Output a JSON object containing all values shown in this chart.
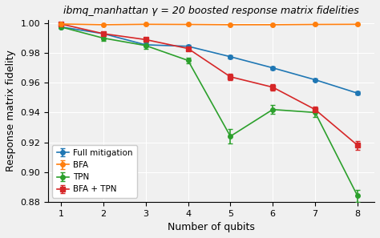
{
  "title": "ibmq_manhattan γ = 20 boosted response matrix fidelities",
  "xlabel": "Number of qubits",
  "ylabel": "Response matrix fidelity",
  "x": [
    1,
    2,
    3,
    4,
    5,
    6,
    7,
    8
  ],
  "full_mitigation": [
    0.9975,
    0.993,
    0.9855,
    0.9845,
    0.9775,
    0.97,
    0.962,
    0.953
  ],
  "full_mitigation_err": [
    0.001,
    0.001,
    0.001,
    0.001,
    0.001,
    0.001,
    0.001,
    0.001
  ],
  "bfa": [
    0.9995,
    0.999,
    0.9993,
    0.9992,
    0.999,
    0.999,
    0.9992,
    0.9993
  ],
  "bfa_err": [
    0.0002,
    0.0002,
    0.0002,
    0.0002,
    0.0002,
    0.0002,
    0.0002,
    0.0002
  ],
  "tpn": [
    0.9975,
    0.99,
    0.985,
    0.975,
    0.924,
    0.942,
    0.94,
    0.884
  ],
  "tpn_err": [
    0.001,
    0.002,
    0.002,
    0.002,
    0.005,
    0.003,
    0.003,
    0.004
  ],
  "bfa_tpn": [
    0.9995,
    0.993,
    0.989,
    0.983,
    0.964,
    0.957,
    0.942,
    0.918
  ],
  "bfa_tpn_err": [
    0.001,
    0.001,
    0.001,
    0.001,
    0.002,
    0.002,
    0.002,
    0.003
  ],
  "color_full": "#1f77b4",
  "color_bfa": "#ff7f0e",
  "color_tpn": "#2ca02c",
  "color_bfa_tpn": "#d62728",
  "ylim": [
    0.88,
    1.002
  ],
  "yticks": [
    0.88,
    0.9,
    0.92,
    0.94,
    0.96,
    0.98,
    1.0
  ],
  "xticks": [
    1,
    2,
    3,
    4,
    5,
    6,
    7,
    8
  ],
  "bg_color": "#f0f0f0"
}
